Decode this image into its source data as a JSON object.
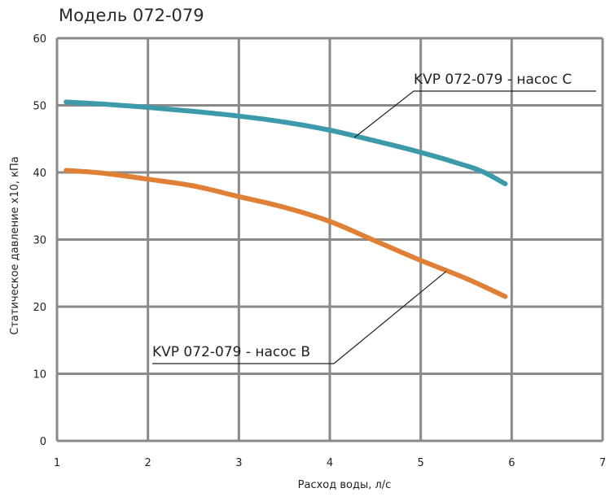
{
  "chart_data": {
    "type": "line",
    "title": "Модель 072-079",
    "xlabel": "Расход воды, л/с",
    "ylabel": "Статическое давление х10, кПа",
    "xlim": [
      1,
      7
    ],
    "ylim": [
      0,
      60
    ],
    "x_ticks": [
      "1",
      "2",
      "3",
      "4",
      "5",
      "6",
      "7"
    ],
    "y_ticks": [
      "0",
      "10",
      "20",
      "30",
      "40",
      "50",
      "60"
    ],
    "grid": true,
    "series": [
      {
        "name": "KVP 072-079 - насос C",
        "color": "#3d9aab",
        "x": [
          1.1,
          1.5,
          2.0,
          2.5,
          3.0,
          3.5,
          4.0,
          4.5,
          5.0,
          5.5,
          5.7,
          5.93
        ],
        "y": [
          50.5,
          50.2,
          49.7,
          49.1,
          48.4,
          47.5,
          46.3,
          44.7,
          43.0,
          41.0,
          40.0,
          38.3
        ]
      },
      {
        "name": "KVP 072-079 - насос B",
        "color": "#e07f36",
        "x": [
          1.1,
          1.5,
          2.0,
          2.5,
          3.0,
          3.5,
          4.0,
          4.5,
          5.0,
          5.5,
          5.93
        ],
        "y": [
          40.3,
          39.9,
          39.0,
          38.0,
          36.4,
          34.8,
          32.7,
          29.8,
          26.9,
          24.2,
          21.5
        ]
      }
    ]
  }
}
